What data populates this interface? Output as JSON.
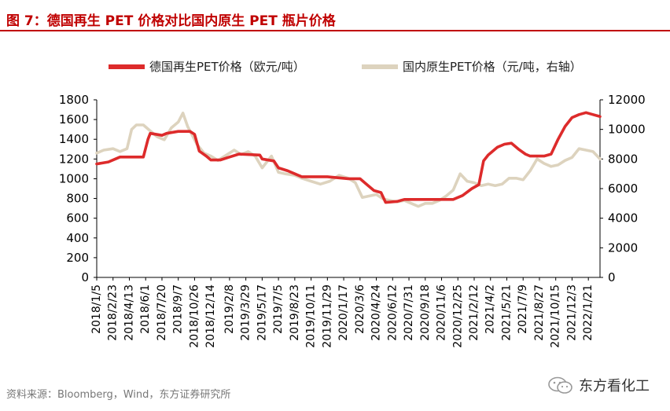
{
  "header": {
    "title": "图 7：德国再生 PET 价格对比国内原生 PET 瓶片价格"
  },
  "footer": {
    "source": "资料来源：Bloomberg，Wind，东方证券研究所",
    "brand": "东方看化工"
  },
  "colors": {
    "title": "#c00000",
    "series_primary": "#dd2b2b",
    "series_secondary": "#ddd3be"
  },
  "chart_data": {
    "type": "line",
    "grid": false,
    "legend_position": "top",
    "x_tick_labels": [
      "2018/1/5",
      "2018/2/23",
      "2018/4/13",
      "2018/6/1",
      "2018/7/20",
      "2018/9/7",
      "2018/10/26",
      "2018/12/14",
      "2019/2/8",
      "2019/3/29",
      "2019/5/17",
      "2019/7/5",
      "2019/8/23",
      "2019/10/11",
      "2019/11/29",
      "2020/1/17",
      "2020/3/6",
      "2020/4/24",
      "2020/6/12",
      "2020/7/31",
      "2020/9/18",
      "2020/11/6",
      "2020/12/25",
      "2021/2/12",
      "2021/4/2",
      "2021/5/21",
      "2021/7/9",
      "2021/8/27",
      "2021/10/15",
      "2021/12/3",
      "2022/1/21"
    ],
    "x_range": [
      "2018/1/5",
      "2022/2/25"
    ],
    "y_left": {
      "range": [
        0,
        1800
      ],
      "ticks": [
        "0",
        "200",
        "400",
        "600",
        "800",
        "1000",
        "1200",
        "1400",
        "1600",
        "1800"
      ]
    },
    "y_right": {
      "range": [
        0,
        12000
      ],
      "ticks": [
        "0",
        "2000",
        "4000",
        "6000",
        "8000",
        "10000",
        "12000"
      ]
    },
    "series": [
      {
        "name": "德国再生PET价格（欧元/吨）",
        "axis": "left",
        "points": [
          [
            "2018/1/5",
            1150
          ],
          [
            "2018/2/9",
            1170
          ],
          [
            "2018/3/2",
            1200
          ],
          [
            "2018/3/16",
            1220
          ],
          [
            "2018/5/25",
            1220
          ],
          [
            "2018/6/8",
            1400
          ],
          [
            "2018/6/15",
            1460
          ],
          [
            "2018/7/20",
            1440
          ],
          [
            "2018/8/3",
            1460
          ],
          [
            "2018/9/7",
            1480
          ],
          [
            "2018/10/12",
            1480
          ],
          [
            "2018/10/26",
            1450
          ],
          [
            "2018/11/9",
            1280
          ],
          [
            "2018/11/30",
            1230
          ],
          [
            "2018/12/14",
            1190
          ],
          [
            "2019/1/11",
            1190
          ],
          [
            "2019/2/8",
            1220
          ],
          [
            "2019/3/8",
            1250
          ],
          [
            "2019/5/10",
            1240
          ],
          [
            "2019/5/17",
            1200
          ],
          [
            "2019/6/21",
            1180
          ],
          [
            "2019/7/5",
            1110
          ],
          [
            "2019/8/2",
            1080
          ],
          [
            "2019/8/23",
            1050
          ],
          [
            "2019/9/13",
            1020
          ],
          [
            "2019/11/29",
            1020
          ],
          [
            "2020/1/31",
            1000
          ],
          [
            "2020/3/6",
            1000
          ],
          [
            "2020/3/27",
            940
          ],
          [
            "2020/4/17",
            880
          ],
          [
            "2020/5/8",
            860
          ],
          [
            "2020/5/22",
            760
          ],
          [
            "2020/6/26",
            770
          ],
          [
            "2020/7/17",
            790
          ],
          [
            "2020/9/18",
            790
          ],
          [
            "2020/11/6",
            790
          ],
          [
            "2020/12/11",
            790
          ],
          [
            "2021/1/8",
            830
          ],
          [
            "2021/2/5",
            900
          ],
          [
            "2021/2/26",
            940
          ],
          [
            "2021/3/12",
            1180
          ],
          [
            "2021/3/26",
            1240
          ],
          [
            "2021/4/23",
            1320
          ],
          [
            "2021/5/14",
            1350
          ],
          [
            "2021/6/4",
            1360
          ],
          [
            "2021/6/25",
            1300
          ],
          [
            "2021/7/16",
            1250
          ],
          [
            "2021/7/30",
            1230
          ],
          [
            "2021/9/10",
            1230
          ],
          [
            "2021/10/1",
            1250
          ],
          [
            "2021/10/22",
            1400
          ],
          [
            "2021/11/12",
            1530
          ],
          [
            "2021/12/3",
            1620
          ],
          [
            "2021/12/24",
            1650
          ],
          [
            "2022/1/14",
            1670
          ],
          [
            "2022/2/4",
            1650
          ],
          [
            "2022/2/25",
            1630
          ]
        ]
      },
      {
        "name": "国内原生PET价格（元/吨，右轴）",
        "axis": "right",
        "points": [
          [
            "2018/1/5",
            8400
          ],
          [
            "2018/1/26",
            8600
          ],
          [
            "2018/2/23",
            8700
          ],
          [
            "2018/3/16",
            8500
          ],
          [
            "2018/4/6",
            8700
          ],
          [
            "2018/4/20",
            10000
          ],
          [
            "2018/5/4",
            10300
          ],
          [
            "2018/5/25",
            10300
          ],
          [
            "2018/6/15",
            9900
          ],
          [
            "2018/7/6",
            9500
          ],
          [
            "2018/7/27",
            9300
          ],
          [
            "2018/8/17",
            10100
          ],
          [
            "2018/9/7",
            10500
          ],
          [
            "2018/9/21",
            11100
          ],
          [
            "2018/10/5",
            10200
          ],
          [
            "2018/10/19",
            9600
          ],
          [
            "2018/11/2",
            9000
          ],
          [
            "2018/11/23",
            8400
          ],
          [
            "2018/12/14",
            8200
          ],
          [
            "2019/1/4",
            7900
          ],
          [
            "2019/2/1",
            8300
          ],
          [
            "2019/2/22",
            8600
          ],
          [
            "2019/3/15",
            8300
          ],
          [
            "2019/4/5",
            8500
          ],
          [
            "2019/4/26",
            8200
          ],
          [
            "2019/5/17",
            7400
          ],
          [
            "2019/5/31",
            7800
          ],
          [
            "2019/6/14",
            8200
          ],
          [
            "2019/7/5",
            7100
          ],
          [
            "2019/7/26",
            7000
          ],
          [
            "2019/8/23",
            6900
          ],
          [
            "2019/9/13",
            6700
          ],
          [
            "2019/10/11",
            6500
          ],
          [
            "2019/11/8",
            6300
          ],
          [
            "2019/12/6",
            6500
          ],
          [
            "2020/1/3",
            6900
          ],
          [
            "2020/1/31",
            6700
          ],
          [
            "2020/2/21",
            6400
          ],
          [
            "2020/3/13",
            5400
          ],
          [
            "2020/4/3",
            5500
          ],
          [
            "2020/4/24",
            5600
          ],
          [
            "2020/5/15",
            5300
          ],
          [
            "2020/6/5",
            5200
          ],
          [
            "2020/6/26",
            5100
          ],
          [
            "2020/7/17",
            5200
          ],
          [
            "2020/8/7",
            5000
          ],
          [
            "2020/8/28",
            4800
          ],
          [
            "2020/9/18",
            5000
          ],
          [
            "2020/10/9",
            5000
          ],
          [
            "2020/10/30",
            5200
          ],
          [
            "2020/11/20",
            5500
          ],
          [
            "2020/12/11",
            5900
          ],
          [
            "2021/1/1",
            7000
          ],
          [
            "2021/1/22",
            6500
          ],
          [
            "2021/2/12",
            6400
          ],
          [
            "2021/3/5",
            6200
          ],
          [
            "2021/3/26",
            6300
          ],
          [
            "2021/4/16",
            6200
          ],
          [
            "2021/5/7",
            6300
          ],
          [
            "2021/5/28",
            6700
          ],
          [
            "2021/6/18",
            6700
          ],
          [
            "2021/7/9",
            6600
          ],
          [
            "2021/7/30",
            7200
          ],
          [
            "2021/8/20",
            8000
          ],
          [
            "2021/9/10",
            7700
          ],
          [
            "2021/10/1",
            7500
          ],
          [
            "2021/10/22",
            7600
          ],
          [
            "2021/11/12",
            7900
          ],
          [
            "2021/12/3",
            8100
          ],
          [
            "2021/12/24",
            8700
          ],
          [
            "2022/1/14",
            8600
          ],
          [
            "2022/2/4",
            8500
          ],
          [
            "2022/2/25",
            8000
          ]
        ]
      }
    ]
  }
}
